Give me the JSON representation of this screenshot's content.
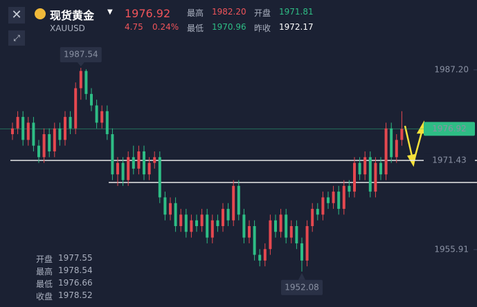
{
  "header": {
    "name": "现货黄金",
    "symbol": "XAUUSD",
    "price": "1976.92",
    "change": "4.75",
    "change_pct": "0.24%",
    "stats": [
      {
        "label": "最高",
        "value": "1982.20"
      },
      {
        "label": "开盘",
        "value": "1971.81"
      },
      {
        "label": "最低",
        "value": "1970.96"
      },
      {
        "label": "昨收",
        "value": "1972.17"
      }
    ]
  },
  "ohlc_panel": [
    {
      "label": "开盘",
      "value": "1977.55"
    },
    {
      "label": "最高",
      "value": "1978.54"
    },
    {
      "label": "最低",
      "value": "1976.66"
    },
    {
      "label": "收盘",
      "value": "1978.52"
    }
  ],
  "chart_data": {
    "type": "candlestick",
    "up_color": "#e5484f",
    "down_color": "#2ebd85",
    "ylim": [
      1945.92,
      1999.35
    ],
    "yticks": [
      1955.91,
      {
        "value": 1987.2,
        "label": "1987.20"
      }
    ],
    "hlines": [
      1971.43,
      1967.6
    ],
    "candles": [
      [
        1976,
        1978,
        1975,
        1977
      ],
      [
        1977,
        1980,
        1976,
        1979
      ],
      [
        1979,
        1980,
        1974,
        1975
      ],
      [
        1975,
        1979,
        1974,
        1978
      ],
      [
        1978,
        1979,
        1973,
        1974
      ],
      [
        1974,
        1975,
        1971,
        1972
      ],
      [
        1972,
        1977,
        1971,
        1976
      ],
      [
        1976,
        1977,
        1972,
        1973
      ],
      [
        1973,
        1978,
        1972,
        1977
      ],
      [
        1977,
        1978,
        1974,
        1975
      ],
      [
        1975,
        1980,
        1974,
        1979
      ],
      [
        1979,
        1980,
        1976,
        1977
      ],
      [
        1977,
        1985,
        1976,
        1984
      ],
      [
        1984,
        1987.54,
        1982,
        1987
      ],
      [
        1987,
        1987.3,
        1982,
        1983
      ],
      [
        1983,
        1984,
        1980,
        1981
      ],
      [
        1981,
        1982,
        1977,
        1978
      ],
      [
        1978,
        1981,
        1977,
        1980
      ],
      [
        1980,
        1981,
        1975,
        1976
      ],
      [
        1976,
        1977,
        1968,
        1969
      ],
      [
        1969,
        1972,
        1967,
        1971
      ],
      [
        1971,
        1972,
        1967,
        1968
      ],
      [
        1968,
        1973,
        1967,
        1972
      ],
      [
        1972,
        1974,
        1969,
        1970
      ],
      [
        1970,
        1974,
        1969,
        1973
      ],
      [
        1973,
        1974,
        1968,
        1969
      ],
      [
        1969,
        1972,
        1968,
        1971
      ],
      [
        1971,
        1973,
        1970,
        1972
      ],
      [
        1972,
        1973,
        1964,
        1965
      ],
      [
        1965,
        1966,
        1961,
        1962
      ],
      [
        1962,
        1965,
        1961,
        1964
      ],
      [
        1964,
        1965,
        1959,
        1960
      ],
      [
        1960,
        1963,
        1959,
        1962
      ],
      [
        1962,
        1963,
        1958,
        1959
      ],
      [
        1959,
        1962,
        1958,
        1961
      ],
      [
        1961,
        1962,
        1959,
        1960
      ],
      [
        1960,
        1963,
        1959,
        1962
      ],
      [
        1962,
        1963,
        1957,
        1958
      ],
      [
        1958,
        1962,
        1957,
        1961
      ],
      [
        1961,
        1962,
        1959,
        1960
      ],
      [
        1960,
        1964,
        1959,
        1963
      ],
      [
        1963,
        1964,
        1960,
        1961
      ],
      [
        1961,
        1968,
        1960,
        1967
      ],
      [
        1967,
        1968,
        1961,
        1962
      ],
      [
        1962,
        1963,
        1957,
        1958
      ],
      [
        1958,
        1961,
        1957,
        1960
      ],
      [
        1960,
        1961,
        1954,
        1955
      ],
      [
        1955,
        1956,
        1953,
        1954
      ],
      [
        1954,
        1957,
        1953,
        1956
      ],
      [
        1956,
        1962,
        1955,
        1961
      ],
      [
        1961,
        1962,
        1958,
        1959
      ],
      [
        1959,
        1963,
        1958,
        1962
      ],
      [
        1962,
        1963,
        1957,
        1958
      ],
      [
        1958,
        1961,
        1957,
        1960
      ],
      [
        1960,
        1961,
        1956,
        1957
      ],
      [
        1957,
        1958,
        1952.08,
        1954
      ],
      [
        1954,
        1961,
        1953,
        1960
      ],
      [
        1960,
        1964,
        1959,
        1963
      ],
      [
        1963,
        1964,
        1961,
        1962
      ],
      [
        1962,
        1966,
        1961,
        1965
      ],
      [
        1965,
        1966,
        1963,
        1964
      ],
      [
        1964,
        1967,
        1963,
        1966
      ],
      [
        1966,
        1967,
        1962,
        1963
      ],
      [
        1963,
        1968,
        1962,
        1967
      ],
      [
        1967,
        1968,
        1965,
        1966
      ],
      [
        1966,
        1972,
        1965,
        1971
      ],
      [
        1971,
        1972,
        1968,
        1969
      ],
      [
        1969,
        1973,
        1968,
        1972
      ],
      [
        1972,
        1973,
        1965,
        1966
      ],
      [
        1966,
        1972,
        1965,
        1971
      ],
      [
        1971,
        1972,
        1968,
        1969
      ],
      [
        1969,
        1978,
        1968,
        1977
      ],
      [
        1977,
        1978,
        1971,
        1972
      ],
      [
        1972,
        1976,
        1971,
        1975
      ],
      [
        1975,
        1980,
        1974,
        1976.92
      ]
    ]
  }
}
